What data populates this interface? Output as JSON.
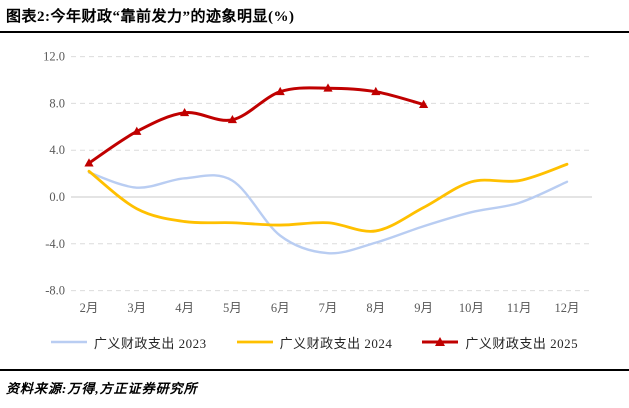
{
  "header": {
    "title": "图表2:今年财政“靠前发力”的迹象明显(%)"
  },
  "footer": {
    "source": "资料来源:万得,方正证券研究所"
  },
  "colors": {
    "series_2023": "#b9cdf2",
    "series_2024": "#ffc000",
    "series_2025": "#c00000",
    "gridline": "#dcdcdc",
    "zero_line": "#c9c9c9",
    "axis_text": "#595959",
    "rule": "#000000"
  },
  "chart_data": {
    "type": "line",
    "title": "图表2:今年财政“靠前发力”的迹象明显(%)",
    "xlabel": "",
    "ylabel": "",
    "categories": [
      "2月",
      "3月",
      "4月",
      "5月",
      "6月",
      "7月",
      "8月",
      "9月",
      "10月",
      "11月",
      "12月"
    ],
    "ylim": [
      -8,
      12
    ],
    "yticks": [
      12,
      8,
      4,
      0,
      -4,
      -8
    ],
    "ytick_labels": [
      "12.0",
      "8.0",
      "4.0",
      "0.0",
      "-4.0",
      "-8.0"
    ],
    "grid": "horizontal-dashed, zero line solid",
    "legend_position": "bottom-center",
    "series": [
      {
        "name": "广义财政支出 2023",
        "color": "#b9cdf2",
        "marker": "none",
        "line_width": 2.4,
        "values": [
          2.1,
          0.8,
          1.6,
          1.4,
          -3.3,
          -4.8,
          -3.9,
          -2.5,
          -1.3,
          -0.5,
          1.3
        ]
      },
      {
        "name": "广义财政支出 2024",
        "color": "#ffc000",
        "marker": "none",
        "line_width": 2.8,
        "values": [
          2.2,
          -1.0,
          -2.1,
          -2.2,
          -2.4,
          -2.2,
          -2.9,
          -0.9,
          1.3,
          1.4,
          2.8
        ]
      },
      {
        "name": "广义财政支出 2025",
        "color": "#c00000",
        "marker": "triangle",
        "line_width": 3,
        "values": [
          2.9,
          5.6,
          7.2,
          6.6,
          9.0,
          9.3,
          9.0,
          7.9,
          null,
          null,
          null
        ]
      }
    ]
  }
}
